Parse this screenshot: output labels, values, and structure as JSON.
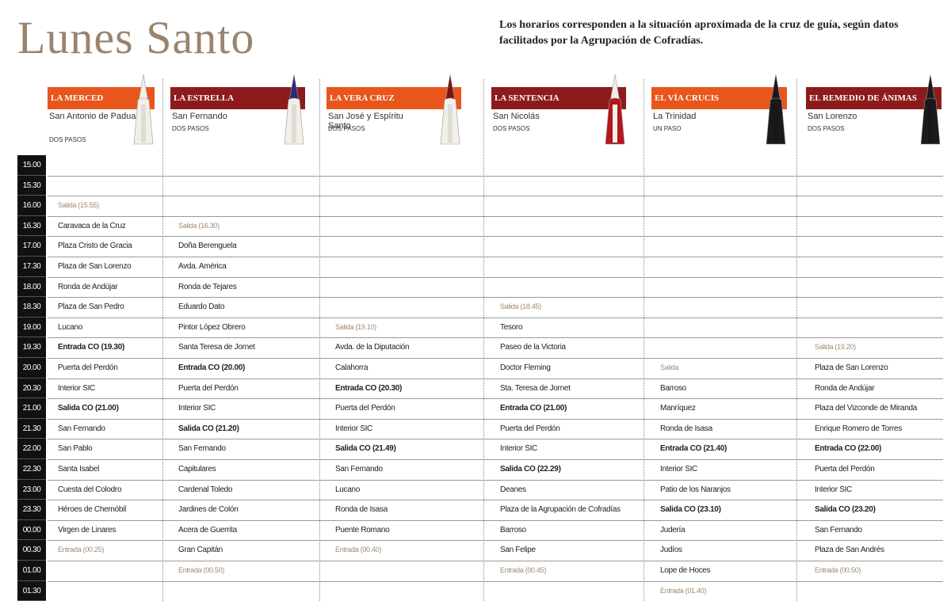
{
  "title": "Lunes Santo",
  "note": "Los horarios corresponden a la situación aproximada de la cruz de guía, según datos facilitados por la Agrupación de Cofradías.",
  "times": [
    "15.00",
    "15.30",
    "16.00",
    "16.30",
    "17.00",
    "17.30",
    "18.00",
    "18.30",
    "19.00",
    "19.30",
    "20.00",
    "20.30",
    "21.00",
    "21.30",
    "22.00",
    "22.30",
    "23.00",
    "23.30",
    "00.00",
    "00.30",
    "01.00",
    "01.30"
  ],
  "columns": [
    {
      "name": "LA MERCED",
      "church": "San Antonio de Padua",
      "pasos": "DOS PASOS",
      "cells": [
        null,
        null,
        "Salida (15.55)",
        "Caravaca de la Cruz",
        "Plaza Cristo de Gracia",
        "Plaza de San Lorenzo",
        "Ronda de Andújar",
        "Plaza de San Pedro",
        "Lucano",
        "Entrada CO (19.30)",
        "Puerta del Perdón",
        "Interior SIC",
        "Salida CO (21.00)",
        "San Fernando",
        "San Pablo",
        "Santa Isabel",
        "Cuesta del Colodro",
        "Héroes de Chernóbil",
        "Virgen de Linares",
        "Entrada (00.25)",
        null,
        null
      ]
    },
    {
      "name": "LA ESTRELLA",
      "church": "San Fernando",
      "pasos": "DOS PASOS",
      "cells": [
        null,
        null,
        null,
        "Salida (16.30)",
        "Doña Berenguela",
        "Avda. América",
        "Ronda de Tejares",
        "Eduardo Dato",
        "Pintor López Obrero",
        "Santa Teresa de Jornet",
        "Entrada CO (20.00)",
        "Puerta del Perdón",
        "Interior SIC",
        "Salida CO (21.20)",
        "San Fernando",
        "Capitulares",
        "Cardenal Toledo",
        "Jardines de Colón",
        "Acera de Guerrita",
        "Gran Capitán",
        "Entrada (00.50)",
        null
      ]
    },
    {
      "name": "LA VERA CRUZ",
      "church": "San José y Espíritu Santo",
      "pasos": "DOS PASOS",
      "cells": [
        null,
        null,
        null,
        null,
        null,
        null,
        null,
        null,
        "Salida (19.10)",
        "Avda. de la Diputación",
        "Calahorra",
        "Entrada CO (20.30)",
        "Puerta del Perdón",
        "Interior SIC",
        "Salida CO (21.49)",
        "San Fernando",
        "Lucano",
        "Ronda de Isasa",
        "Puente Romano",
        "Entrada (00.40)",
        null,
        null
      ]
    },
    {
      "name": "LA SENTENCIA",
      "church": "San Nicolás",
      "pasos": "DOS PASOS",
      "cells": [
        null,
        null,
        null,
        null,
        null,
        null,
        null,
        "Salida (18.45)",
        "Tesoro",
        "Paseo de la Victoria",
        "Doctor Fleming",
        "Sta. Teresa de Jornet",
        "Entrada CO (21.00)",
        "Puerta del Perdón",
        "Interior SIC",
        "Salida CO (22.29)",
        "Deanes",
        "Plaza de la Agrupación de Cofradías",
        "Barroso",
        "San Felipe",
        "Entrada (00.45)",
        null
      ]
    },
    {
      "name": "EL VÍA CRUCIS",
      "church": "La Trinidad",
      "pasos": "UN PASO",
      "cells": [
        null,
        null,
        null,
        null,
        null,
        null,
        null,
        null,
        null,
        null,
        "Salida",
        "Barroso",
        "Manríquez",
        "Ronda de Isasa",
        "Entrada CO (21.40)",
        "Interior SIC",
        "Patio de los Naranjos",
        "Salida CO (23.10)",
        "Judería",
        "Judíos",
        "Lope de Hoces",
        "Entrada (01.40)"
      ]
    },
    {
      "name": "EL REMEDIO DE ÁNIMAS",
      "church": "San Lorenzo",
      "pasos": "DOS PASOS",
      "cells": [
        null,
        null,
        null,
        null,
        null,
        null,
        null,
        null,
        null,
        "Salida (19.20)",
        "Plaza de San Lorenzo",
        "Ronda de Andújar",
        "Plaza del Vizconde de Miranda",
        "Enrique Romero de Torres",
        "Entrada CO (22.00)",
        "Puerta del Perdón",
        "Interior SIC",
        "Salida CO (23.20)",
        "San Fernando",
        "Plaza de San Andrés",
        "Entrada (00.50)",
        null
      ]
    }
  ]
}
